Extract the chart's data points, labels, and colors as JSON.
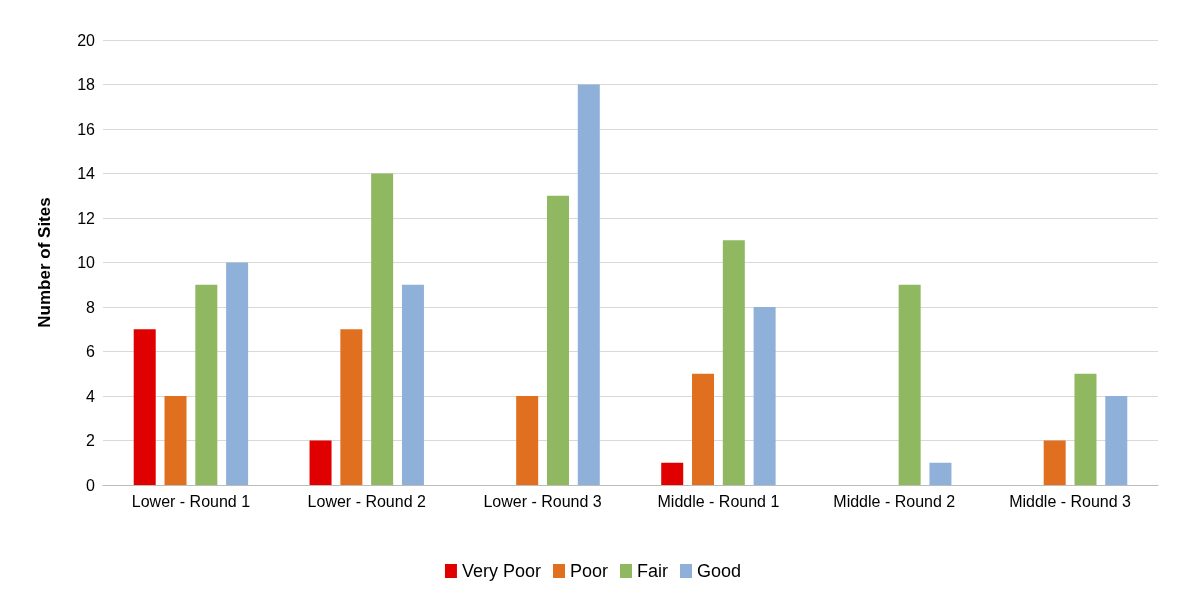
{
  "chart_data": {
    "type": "bar",
    "ylabel": "Number of Sites",
    "categories": [
      "Lower - Round 1",
      "Lower - Round 2",
      "Lower - Round 3",
      "Middle - Round 1",
      "Middle - Round 2",
      "Middle - Round 3"
    ],
    "series": [
      {
        "name": "Very Poor",
        "color": "#e00000",
        "values": [
          7,
          2,
          0,
          1,
          0,
          0
        ]
      },
      {
        "name": "Poor",
        "color": "#e07020",
        "values": [
          4,
          7,
          4,
          5,
          0,
          2
        ]
      },
      {
        "name": "Fair",
        "color": "#8fb860",
        "values": [
          9,
          14,
          13,
          11,
          9,
          5
        ]
      },
      {
        "name": "Good",
        "color": "#8fb0d8",
        "values": [
          10,
          9,
          18,
          8,
          1,
          4
        ]
      }
    ],
    "ylim": [
      0,
      20
    ],
    "yticks": [
      0,
      2,
      4,
      6,
      8,
      10,
      12,
      14,
      16,
      18,
      20
    ],
    "grid": "y",
    "legend": "bottom"
  }
}
